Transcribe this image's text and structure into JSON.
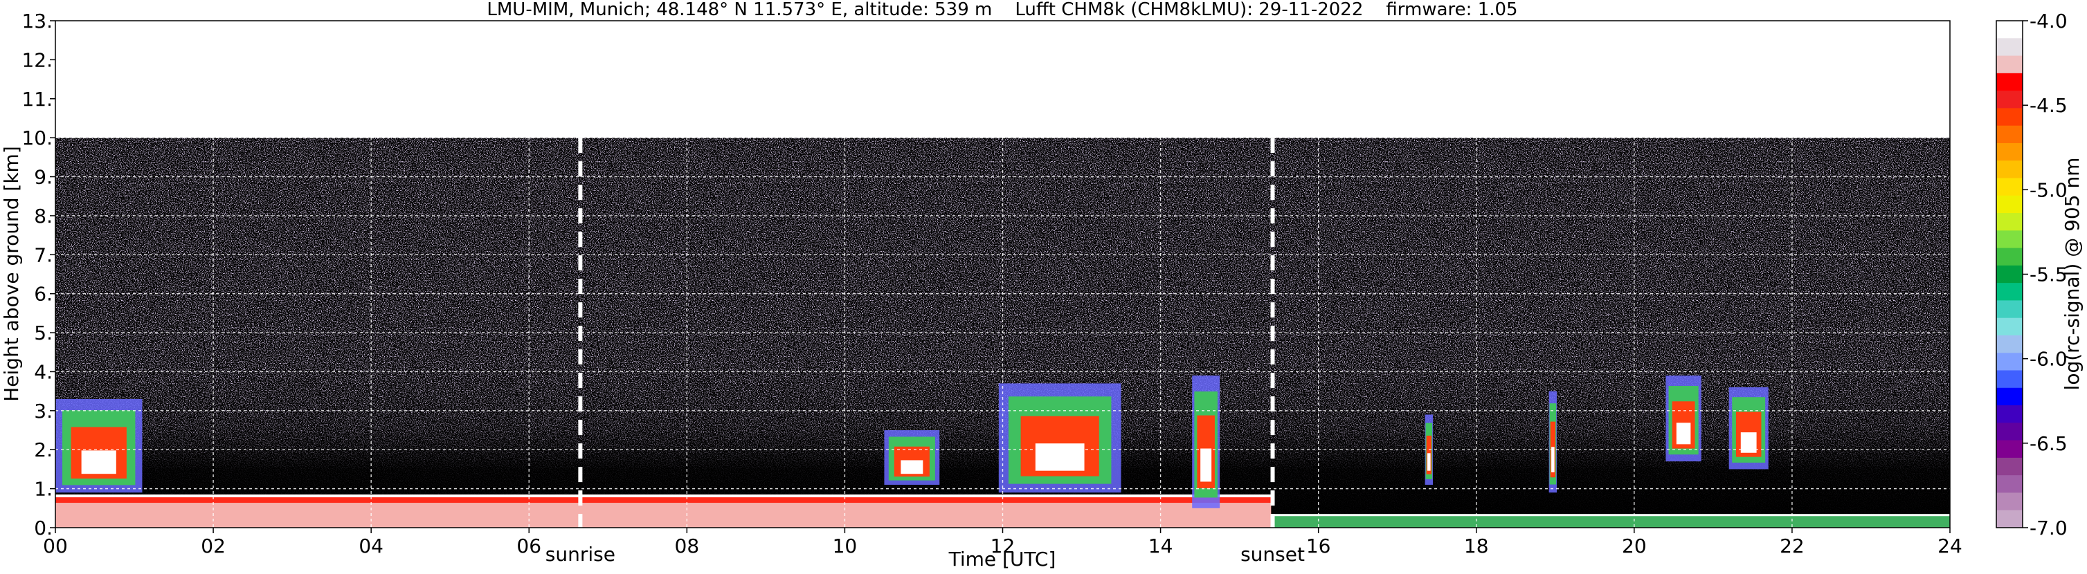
{
  "chart_data": {
    "type": "heatmap",
    "title": "LMU-MIM, Munich; 48.148° N 11.573° E, altitude: 539 m    Lufft CHM8k (CHM8kLMU): 29-11-2022    firmware: 1.05",
    "xlabel": "Time [UTC]",
    "ylabel": "Height above ground [km]",
    "xlim": [
      0,
      24
    ],
    "ylim": [
      0,
      13
    ],
    "x_ticks": [
      "00",
      "02",
      "04",
      "06",
      "08",
      "10",
      "12",
      "14",
      "16",
      "18",
      "20",
      "22",
      "24"
    ],
    "y_ticks": [
      "0.",
      "1.",
      "2.",
      "3.",
      "4.",
      "5.",
      "6.",
      "7.",
      "8.",
      "9.",
      "10.",
      "11.",
      "12.",
      "13."
    ],
    "grid": true,
    "data_top_km": 10,
    "markers": [
      {
        "label": "sunrise",
        "time_h": 6.65
      },
      {
        "label": "sunset",
        "time_h": 15.42
      }
    ],
    "colorbar": {
      "label": "log(rc-signal) @ 905 nm",
      "range": [
        -7.0,
        -4.0
      ],
      "ticks": [
        "-4.0",
        "-4.5",
        "-5.0",
        "-5.5",
        "-6.0",
        "-6.5",
        "-7.0"
      ],
      "colors": [
        "#ffffff",
        "#e6e0e6",
        "#f0c0c0",
        "#ff0000",
        "#f02020",
        "#ff4000",
        "#ff7000",
        "#ff9a00",
        "#ffc000",
        "#ffe000",
        "#f0f000",
        "#c8f020",
        "#80e040",
        "#40c040",
        "#00a040",
        "#00c080",
        "#40d0c0",
        "#80e0e0",
        "#a0c0f0",
        "#80a0ff",
        "#4060ff",
        "#0000ff",
        "#4000c0",
        "#6000a0",
        "#800090",
        "#904090",
        "#a060a8",
        "#b888b8",
        "#c8a8c8"
      ]
    },
    "features": [
      {
        "name": "aerosol boundary layer",
        "t_start": 0.0,
        "t_end": 15.4,
        "top_km": 0.85
      },
      {
        "name": "near-surface layer",
        "t_start": 15.4,
        "t_end": 24.0,
        "top_km": 0.35
      },
      {
        "name": "cloud",
        "t_start": 0.0,
        "t_end": 1.1,
        "base_km": 0.9,
        "top_km": 3.3
      },
      {
        "name": "cloud",
        "t_start": 11.95,
        "t_end": 13.5,
        "base_km": 0.9,
        "top_km": 3.7
      },
      {
        "name": "cloud",
        "t_start": 10.5,
        "t_end": 11.2,
        "base_km": 1.1,
        "top_km": 2.5
      },
      {
        "name": "cloud",
        "t_start": 14.4,
        "t_end": 14.75,
        "base_km": 0.5,
        "top_km": 3.9
      },
      {
        "name": "cloud",
        "t_start": 17.35,
        "t_end": 17.45,
        "base_km": 1.1,
        "top_km": 2.9
      },
      {
        "name": "cloud",
        "t_start": 18.92,
        "t_end": 19.02,
        "base_km": 0.9,
        "top_km": 3.5
      },
      {
        "name": "cloud",
        "t_start": 20.4,
        "t_end": 20.85,
        "base_km": 1.7,
        "top_km": 3.9
      },
      {
        "name": "cloud",
        "t_start": 21.2,
        "t_end": 21.7,
        "base_km": 1.5,
        "top_km": 3.6
      }
    ]
  }
}
